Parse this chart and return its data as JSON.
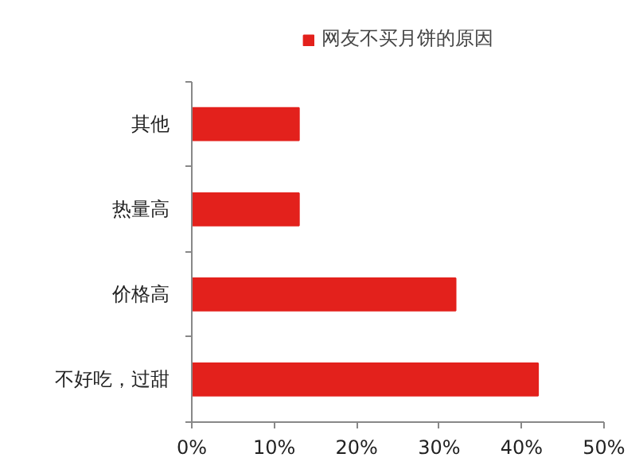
{
  "chart_data": {
    "type": "bar",
    "orientation": "horizontal",
    "categories": [
      "其他",
      "热量高",
      "价格高",
      "不好吃，过甜"
    ],
    "series": [
      {
        "name": "网友不买月饼的原因",
        "color": "#e3211c",
        "values": [
          13,
          13,
          32,
          42
        ]
      }
    ],
    "xlim": [
      0,
      50
    ],
    "xticks": [
      {
        "value": 0,
        "label": "0%"
      },
      {
        "value": 10,
        "label": "10%"
      },
      {
        "value": 20,
        "label": "20%"
      },
      {
        "value": 30,
        "label": "30%"
      },
      {
        "value": 40,
        "label": "40%"
      },
      {
        "value": 50,
        "label": "50%"
      }
    ],
    "legend": "top",
    "grid": false
  }
}
